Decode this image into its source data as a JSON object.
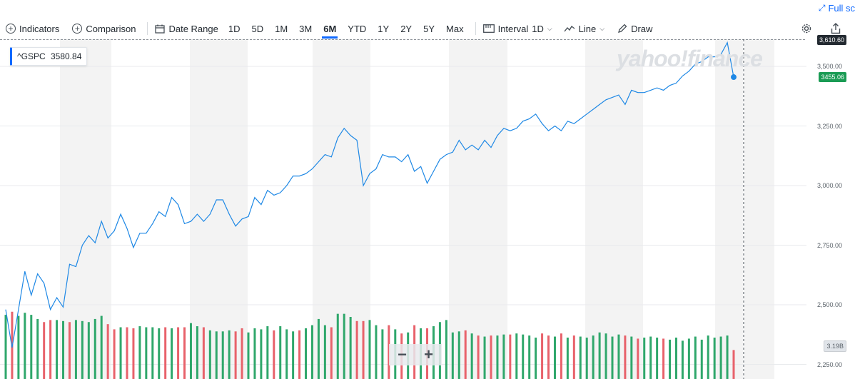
{
  "fullscreen": {
    "label": "Full sc",
    "icon": "expand-arrows-icon"
  },
  "toolbar": {
    "indicators_label": "Indicators",
    "comparison_label": "Comparison",
    "date_range_label": "Date Range",
    "ranges": [
      "1D",
      "5D",
      "1M",
      "3M",
      "6M",
      "YTD",
      "1Y",
      "2Y",
      "5Y",
      "Max"
    ],
    "active_range": "6M",
    "interval_label": "Interval",
    "interval_value": "1D",
    "chart_type_label": "Line",
    "draw_label": "Draw",
    "icons": [
      "plus-circle-icon",
      "calendar-icon",
      "interval-icon",
      "line-chart-icon",
      "pencil-icon",
      "gear-icon",
      "share-icon"
    ]
  },
  "quote": {
    "symbol": "^GSPC",
    "value": "3580.84"
  },
  "watermark": "yahoo!finance",
  "zoom": {
    "minus": "−",
    "plus": "+"
  },
  "colors": {
    "line": "#1e88e5",
    "vol_up": "#2fa76b",
    "vol_down": "#e8626b",
    "band": "#f3f3f3",
    "last_tag": "#1a9b54"
  },
  "chart_data": {
    "type": "line",
    "title": "",
    "xlabel": "",
    "ylabel": "",
    "ylim": [
      2210,
      3640
    ],
    "y_ticks": [
      2250,
      2500,
      2750,
      3000,
      3250,
      3500
    ],
    "y_tick_labels": [
      "2,250.00",
      "2,500.00",
      "2,750.00",
      "3,000.00",
      "3,250.00",
      "3,500.00"
    ],
    "high_label": "3,610.60",
    "last_label": "3455.06",
    "volume_label": "3.19B",
    "grid": true,
    "series": [
      {
        "values": [
          2480,
          2320,
          2480,
          2640,
          2540,
          2630,
          2590,
          2480,
          2530,
          2490,
          2670,
          2660,
          2750,
          2790,
          2760,
          2850,
          2780,
          2810,
          2880,
          2820,
          2740,
          2800,
          2800,
          2840,
          2890,
          2870,
          2950,
          2920,
          2840,
          2850,
          2880,
          2850,
          2880,
          2940,
          2940,
          2880,
          2830,
          2860,
          2870,
          2950,
          2920,
          2980,
          2960,
          2970,
          3000,
          3040,
          3040,
          3050,
          3070,
          3100,
          3130,
          3120,
          3200,
          3240,
          3210,
          3190,
          3000,
          3050,
          3070,
          3130,
          3120,
          3120,
          3100,
          3130,
          3060,
          3080,
          3010,
          3060,
          3110,
          3130,
          3140,
          3190,
          3150,
          3170,
          3150,
          3190,
          3160,
          3210,
          3240,
          3230,
          3240,
          3270,
          3280,
          3300,
          3260,
          3230,
          3250,
          3230,
          3270,
          3260,
          3280,
          3300,
          3320,
          3340,
          3360,
          3370,
          3380,
          3340,
          3400,
          3390,
          3390,
          3400,
          3410,
          3400,
          3420,
          3430,
          3460,
          3480,
          3510,
          3520,
          3540,
          3540,
          3550,
          3600,
          3455
        ]
      }
    ],
    "volume": {
      "values": [
        62,
        65,
        61,
        64,
        62,
        58,
        55,
        57,
        57,
        56,
        55,
        57,
        56,
        55,
        58,
        61,
        53,
        48,
        50,
        50,
        49,
        51,
        50,
        50,
        49,
        50,
        49,
        50,
        50,
        54,
        51,
        50,
        47,
        46,
        46,
        47,
        46,
        49,
        45,
        49,
        48,
        51,
        47,
        51,
        48,
        46,
        47,
        49,
        52,
        58,
        52,
        50,
        63,
        63,
        60,
        56,
        56,
        57,
        52,
        48,
        52,
        48,
        44,
        45,
        52,
        49,
        49,
        51,
        55,
        57,
        45,
        46,
        47,
        44,
        42,
        41,
        42,
        42,
        43,
        43,
        44,
        43,
        42,
        40,
        44,
        42,
        41,
        44,
        40,
        42,
        41,
        40,
        42,
        45,
        44,
        41,
        43,
        42,
        41,
        39,
        40,
        41,
        40,
        39,
        38,
        40,
        37,
        39,
        41,
        38,
        42,
        40,
        41,
        42,
        28
      ],
      "up": [
        1,
        0,
        1,
        1,
        1,
        1,
        0,
        0,
        1,
        1,
        0,
        1,
        1,
        1,
        1,
        1,
        0,
        0,
        1,
        0,
        0,
        1,
        1,
        1,
        1,
        0,
        1,
        0,
        0,
        1,
        1,
        0,
        1,
        1,
        1,
        1,
        0,
        0,
        1,
        1,
        1,
        1,
        0,
        1,
        1,
        1,
        0,
        1,
        1,
        1,
        1,
        0,
        1,
        1,
        1,
        0,
        0,
        1,
        1,
        1,
        0,
        1,
        0,
        1,
        0,
        1,
        0,
        1,
        1,
        1,
        1,
        1,
        0,
        1,
        0,
        1,
        0,
        1,
        1,
        0,
        1,
        1,
        1,
        1,
        0,
        0,
        1,
        0,
        1,
        0,
        1,
        1,
        1,
        1,
        1,
        1,
        1,
        0,
        1,
        0,
        1,
        1,
        1,
        0,
        1,
        1,
        1,
        1,
        1,
        1,
        1,
        1,
        1,
        1,
        0
      ]
    }
  }
}
